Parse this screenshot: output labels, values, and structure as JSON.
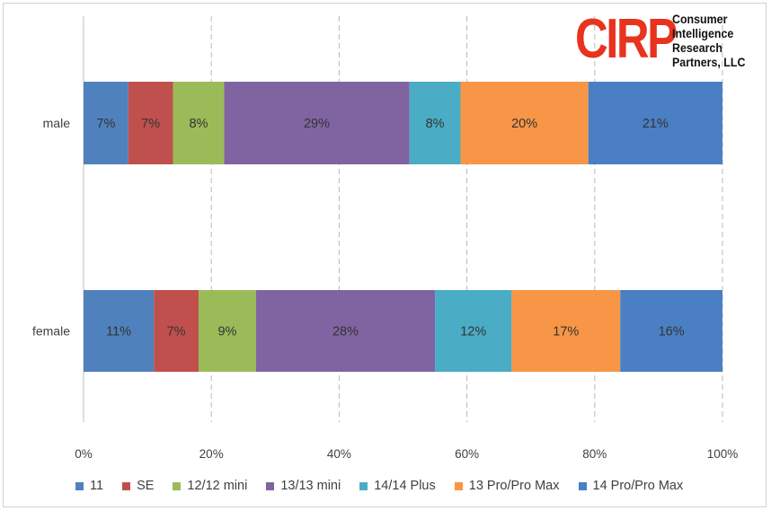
{
  "logo": {
    "mark": "CIRP",
    "text_lines": [
      "Consumer",
      "Intelligence",
      "Research",
      "Partners, LLC"
    ]
  },
  "chart_data": {
    "type": "bar",
    "orientation": "horizontal",
    "stacked": "percent",
    "categories": [
      "male",
      "female"
    ],
    "x_ticks": [
      "0%",
      "20%",
      "40%",
      "60%",
      "80%",
      "100%"
    ],
    "xlim": [
      0,
      100
    ],
    "grid": "vertical dashed",
    "legend_position": "bottom",
    "series": [
      {
        "name": "11",
        "color": "#4f81bd",
        "values": [
          7,
          11
        ],
        "labels": [
          "7%",
          "11%"
        ]
      },
      {
        "name": "SE",
        "color": "#c0504d",
        "values": [
          7,
          7
        ],
        "labels": [
          "7%",
          "7%"
        ]
      },
      {
        "name": "12/12 mini",
        "color": "#9bbb59",
        "values": [
          8,
          9
        ],
        "labels": [
          "8%",
          "9%"
        ]
      },
      {
        "name": "13/13 mini",
        "color": "#8064a2",
        "values": [
          29,
          28
        ],
        "labels": [
          "29%",
          "28%"
        ]
      },
      {
        "name": "14/14 Plus",
        "color": "#4bacc6",
        "values": [
          8,
          12
        ],
        "labels": [
          "8%",
          "12%"
        ]
      },
      {
        "name": "13 Pro/Pro Max",
        "color": "#f79646",
        "values": [
          20,
          17
        ],
        "labels": [
          "20%",
          "17%"
        ]
      },
      {
        "name": "14 Pro/Pro Max",
        "color": "#4a7fc4",
        "values": [
          21,
          16
        ],
        "labels": [
          "21%",
          "16%"
        ]
      }
    ]
  }
}
